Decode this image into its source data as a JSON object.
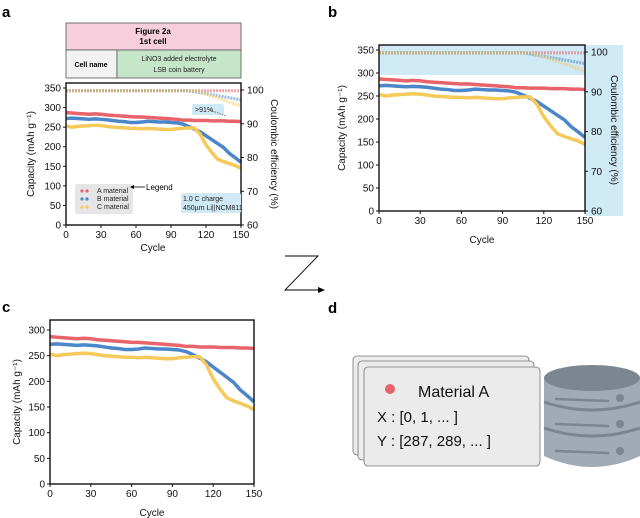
{
  "panels": {
    "a": "a",
    "b": "b",
    "c": "c",
    "d": "d"
  },
  "info_table": {
    "title": "Figure 2a",
    "subtitle": "1st cell",
    "row_label": "Cell name",
    "row_value_line1": "LiNO3 added electrolyte",
    "row_value_line2": "LSB coin battery"
  },
  "annotations": {
    "legend_pointer": "Legend",
    "ce_threshold": ">91%",
    "condition_line1": "1.0 C charge",
    "condition_line2": "450µm Li||NCM811"
  },
  "data_card": {
    "title": "Material A",
    "x_line": "X : [0, 1,  ... ]",
    "y_line": "Y : [287, 289, ... ]"
  },
  "colors": {
    "A": "#e8636a",
    "B": "#4a86c8",
    "C": "#f5c95a",
    "highlight": "#cfe9f5",
    "table_pink": "#f7cfdc",
    "table_green": "#c6e6c9"
  },
  "chart_data": [
    {
      "id": "a",
      "type": "line",
      "xlabel": "Cycle",
      "ylabel": "Capacity (mAh g⁻¹)",
      "y2label": "Coulombic efficiency (%)",
      "xlim": [
        0,
        150
      ],
      "ylim": [
        0,
        350
      ],
      "y2lim": [
        60,
        100
      ],
      "xticks": [
        0,
        30,
        60,
        90,
        120,
        150
      ],
      "yticks": [
        0,
        50,
        100,
        150,
        200,
        250,
        300,
        350
      ],
      "y2ticks": [
        60,
        70,
        80,
        90,
        100
      ],
      "legend": {
        "placement": "bottom-left",
        "entries": [
          "A material",
          "B material",
          "C material"
        ]
      },
      "grid": false
    },
    {
      "id": "b",
      "type": "line",
      "xlabel": "Cycle",
      "ylabel": "Capacity (mAh g⁻¹)",
      "y2label": "Coulombic efficiency (%)",
      "xlim": [
        0,
        150
      ],
      "ylim": [
        0,
        350
      ],
      "y2lim": [
        60,
        100
      ],
      "xticks": [
        0,
        30,
        60,
        90,
        120,
        150
      ],
      "yticks": [
        0,
        50,
        100,
        150,
        200,
        250,
        300,
        350
      ],
      "y2ticks": [
        60,
        70,
        80,
        90,
        100
      ],
      "grid": false
    },
    {
      "id": "c",
      "type": "line",
      "xlabel": "Cycle",
      "ylabel": "Capacity (mAh g⁻¹)",
      "xlim": [
        0,
        150
      ],
      "ylim": [
        0,
        320
      ],
      "xticks": [
        0,
        30,
        60,
        90,
        120,
        150
      ],
      "yticks": [
        0,
        50,
        100,
        150,
        200,
        250,
        300
      ],
      "grid": false
    }
  ],
  "series": {
    "x": [
      0,
      5,
      10,
      15,
      20,
      25,
      30,
      35,
      40,
      45,
      50,
      55,
      60,
      65,
      70,
      75,
      80,
      85,
      90,
      95,
      100,
      105,
      110,
      115,
      120,
      125,
      130,
      135,
      140,
      145,
      150
    ],
    "capacity": [
      {
        "name": "A material",
        "color_key": "A",
        "values": [
          287,
          286,
          285,
          284,
          283,
          284,
          283,
          281,
          280,
          279,
          278,
          277,
          276,
          276,
          275,
          274,
          273,
          272,
          271,
          270,
          268,
          268,
          267,
          267,
          267,
          266,
          266,
          266,
          265,
          265,
          264
        ]
      },
      {
        "name": "B material",
        "color_key": "B",
        "values": [
          272,
          273,
          272,
          271,
          270,
          271,
          270,
          269,
          267,
          265,
          264,
          262,
          262,
          263,
          265,
          264,
          263,
          263,
          262,
          261,
          258,
          252,
          245,
          238,
          228,
          218,
          208,
          198,
          183,
          172,
          160
        ]
      },
      {
        "name": "C material",
        "color_key": "C",
        "values": [
          253,
          250,
          252,
          253,
          254,
          255,
          254,
          252,
          250,
          249,
          248,
          247,
          247,
          246,
          247,
          246,
          245,
          244,
          244,
          246,
          247,
          248,
          248,
          232,
          205,
          185,
          168,
          162,
          157,
          152,
          145
        ]
      }
    ],
    "coulombic_efficiency": [
      {
        "name": "A material",
        "color_key": "A",
        "values": [
          99.8,
          99.8,
          99.8,
          99.8,
          99.8,
          99.8,
          99.8,
          99.8,
          99.8,
          99.8,
          99.8,
          99.8,
          99.8,
          99.8,
          99.8,
          99.8,
          99.8,
          99.8,
          99.8,
          99.8,
          99.8,
          99.8,
          99.8,
          99.8,
          99.8,
          99.8,
          99.8,
          99.8,
          99.8,
          99.8,
          99.8
        ]
      },
      {
        "name": "B material",
        "color_key": "B",
        "values": [
          99.8,
          99.8,
          99.8,
          99.8,
          99.8,
          99.8,
          99.8,
          99.8,
          99.8,
          99.8,
          99.8,
          99.8,
          99.8,
          99.8,
          99.8,
          99.8,
          99.8,
          99.8,
          99.8,
          99.8,
          99.8,
          99.8,
          99.5,
          99.2,
          98.9,
          98.6,
          98.3,
          98.0,
          97.7,
          97.4,
          97.1
        ]
      },
      {
        "name": "C material",
        "color_key": "C",
        "values": [
          99.8,
          99.8,
          99.8,
          99.8,
          99.8,
          99.8,
          99.8,
          99.8,
          99.8,
          99.8,
          99.8,
          99.8,
          99.8,
          99.8,
          99.8,
          99.8,
          99.8,
          99.8,
          99.8,
          99.8,
          99.8,
          99.8,
          99.8,
          99.3,
          98.8,
          98.2,
          97.6,
          97.0,
          96.4,
          95.8,
          95.2
        ]
      }
    ]
  }
}
